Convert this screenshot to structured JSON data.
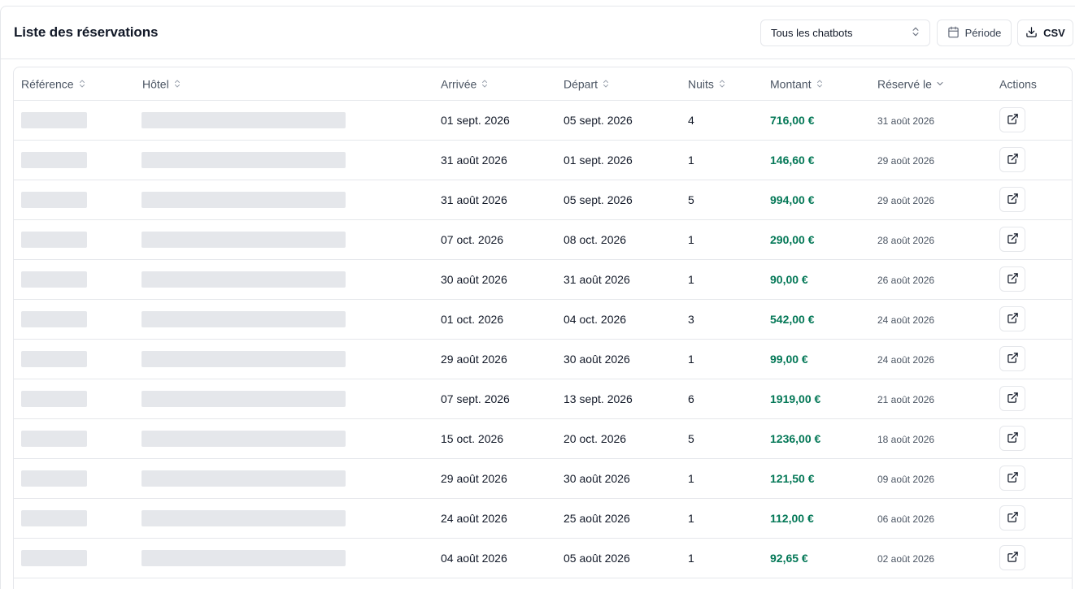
{
  "header": {
    "title": "Liste des réservations",
    "chatbot_select": {
      "value": "Tous les chatbots"
    },
    "period_label": "Période",
    "csv_label": "CSV"
  },
  "table": {
    "columns": [
      {
        "label": "Référence",
        "sort": "both"
      },
      {
        "label": "Hôtel",
        "sort": "both"
      },
      {
        "label": "Arrivée",
        "sort": "both"
      },
      {
        "label": "Départ",
        "sort": "both"
      },
      {
        "label": "Nuits",
        "sort": "both"
      },
      {
        "label": "Montant",
        "sort": "both"
      },
      {
        "label": "Réservé le",
        "sort": "desc"
      },
      {
        "label": "Actions",
        "sort": "none"
      }
    ],
    "rows": [
      {
        "arrival": "01 sept. 2026",
        "departure": "05 sept. 2026",
        "nights": "4",
        "amount": "716,00 €",
        "booked": "31 août 2026"
      },
      {
        "arrival": "31 août 2026",
        "departure": "01 sept. 2026",
        "nights": "1",
        "amount": "146,60 €",
        "booked": "29 août 2026"
      },
      {
        "arrival": "31 août 2026",
        "departure": "05 sept. 2026",
        "nights": "5",
        "amount": "994,00 €",
        "booked": "29 août 2026"
      },
      {
        "arrival": "07 oct. 2026",
        "departure": "08 oct. 2026",
        "nights": "1",
        "amount": "290,00 €",
        "booked": "28 août 2026"
      },
      {
        "arrival": "30 août 2026",
        "departure": "31 août 2026",
        "nights": "1",
        "amount": "90,00 €",
        "booked": "26 août 2026"
      },
      {
        "arrival": "01 oct. 2026",
        "departure": "04 oct. 2026",
        "nights": "3",
        "amount": "542,00 €",
        "booked": "24 août 2026"
      },
      {
        "arrival": "29 août 2026",
        "departure": "30 août 2026",
        "nights": "1",
        "amount": "99,00 €",
        "booked": "24 août 2026"
      },
      {
        "arrival": "07 sept. 2026",
        "departure": "13 sept. 2026",
        "nights": "6",
        "amount": "1919,00 €",
        "booked": "21 août 2026"
      },
      {
        "arrival": "15 oct. 2026",
        "departure": "20 oct. 2026",
        "nights": "5",
        "amount": "1236,00 €",
        "booked": "18 août 2026"
      },
      {
        "arrival": "29 août 2026",
        "departure": "30 août 2026",
        "nights": "1",
        "amount": "121,50 €",
        "booked": "09 août 2026"
      },
      {
        "arrival": "24 août 2026",
        "departure": "25 août 2026",
        "nights": "1",
        "amount": "112,00 €",
        "booked": "06 août 2026"
      },
      {
        "arrival": "04 août 2026",
        "departure": "05 août 2026",
        "nights": "1",
        "amount": "92,65 €",
        "booked": "02 août 2026"
      },
      {
        "arrival": "",
        "departure": "",
        "nights": "",
        "amount": "",
        "booked": ""
      }
    ]
  },
  "icons": {
    "select_chevron": "chevron-up-down-icon",
    "period": "calendar-icon",
    "csv": "download-icon",
    "row_action": "external-link-icon"
  },
  "colors": {
    "amount": "#047857",
    "skeleton": "#e5e7eb",
    "border": "#e5e7eb"
  }
}
